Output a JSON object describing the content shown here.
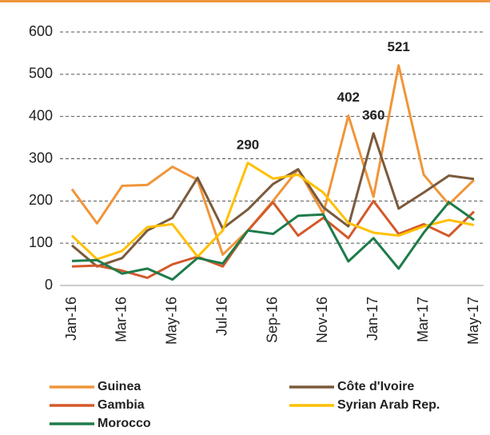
{
  "chart_data": {
    "type": "line",
    "categories": [
      "Jan-16",
      null,
      "Mar-16",
      null,
      "May-16",
      null,
      "Jul-16",
      null,
      "Sep-16",
      null,
      "Nov-16",
      null,
      "Jan-17",
      null,
      "Mar-17",
      null,
      "May-17"
    ],
    "series": [
      {
        "name": "Guinea",
        "color": "#f0953a",
        "values": [
          228,
          147,
          236,
          238,
          281,
          250,
          73,
          130,
          200,
          275,
          170,
          402,
          210,
          521,
          262,
          192,
          250
        ]
      },
      {
        "name": "Côte d'Ivoire",
        "color": "#7b5a3c",
        "values": [
          95,
          45,
          65,
          130,
          160,
          255,
          135,
          180,
          240,
          275,
          185,
          140,
          360,
          182,
          220,
          260,
          252
        ]
      },
      {
        "name": "Gambia",
        "color": "#d35a2a",
        "values": [
          45,
          47,
          35,
          18,
          50,
          68,
          45,
          130,
          197,
          118,
          160,
          112,
          200,
          122,
          145,
          117,
          175
        ]
      },
      {
        "name": "Syrian Arab Rep.",
        "color": "#ffc000",
        "values": [
          118,
          62,
          82,
          138,
          145,
          68,
          130,
          290,
          253,
          262,
          220,
          148,
          125,
          118,
          140,
          155,
          143
        ]
      },
      {
        "name": "Morocco",
        "color": "#1e7b4a",
        "values": [
          58,
          60,
          28,
          40,
          14,
          65,
          52,
          130,
          122,
          165,
          168,
          57,
          112,
          40,
          125,
          197,
          155
        ]
      }
    ],
    "data_labels": [
      {
        "series": 3,
        "index": 7
      },
      {
        "series": 0,
        "index": 11
      },
      {
        "series": 1,
        "index": 12
      },
      {
        "series": 0,
        "index": 13
      }
    ],
    "ylim": [
      0,
      600
    ],
    "yticks": [
      0,
      100,
      200,
      300,
      400,
      500,
      600
    ],
    "grid": true
  }
}
